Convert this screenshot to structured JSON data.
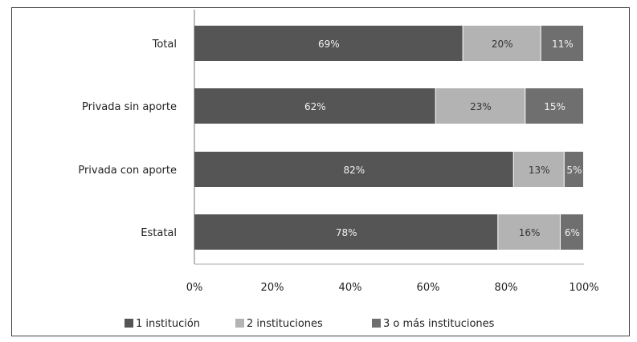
{
  "chart_data": {
    "type": "bar",
    "stacked": true,
    "orientation": "horizontal",
    "percent": true,
    "title": "",
    "xlabel": "",
    "ylabel": "",
    "xlim": [
      0,
      100
    ],
    "grid": false,
    "legend_position": "bottom",
    "categories": [
      "Total",
      "Privada sin aporte",
      "Privada con aporte",
      "Estatal"
    ],
    "x_ticks": [
      "0%",
      "20%",
      "40%",
      "60%",
      "80%",
      "100%"
    ],
    "series": [
      {
        "name": "1 institución",
        "color": "#555555",
        "values": [
          69,
          62,
          82,
          78
        ]
      },
      {
        "name": "2 instituciones",
        "color": "#b3b3b3",
        "values": [
          20,
          23,
          13,
          16
        ]
      },
      {
        "name": "3 o más instituciones",
        "color": "#6f6f6f",
        "values": [
          11,
          15,
          5,
          6
        ]
      }
    ]
  }
}
